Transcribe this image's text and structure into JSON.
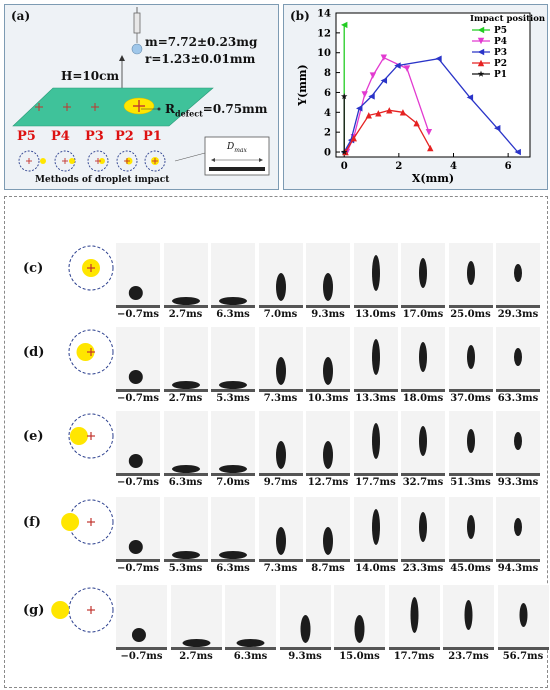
{
  "panel_a": {
    "label": "(a)",
    "mass": "m=7.72±0.23mg",
    "radius": "r=1.23±0.01mm",
    "height": "H=10cm",
    "r_defect_prefix": "R",
    "r_defect_sub": "defect",
    "r_defect_value": "=0.75mm",
    "positions": [
      "P5",
      "P4",
      "P3",
      "P2",
      "P1"
    ],
    "methods_caption": "Methods of droplet impact",
    "dmax_label": "D",
    "dmax_sub": "max"
  },
  "panel_b": {
    "label": "(b)"
  },
  "chart_data": {
    "type": "line",
    "xlabel": "X(mm)",
    "ylabel": "Y(mm)",
    "xlim": [
      -0.3,
      6.8
    ],
    "ylim": [
      -0.5,
      14
    ],
    "xticks": [
      0,
      2,
      4,
      6
    ],
    "yticks": [
      0,
      2,
      4,
      6,
      8,
      10,
      12,
      14
    ],
    "legend_title": "Impact position",
    "legend_position": "top-right",
    "series": [
      {
        "name": "P5",
        "color": "#22cc22",
        "marker": "triangle-left",
        "x": [
          0,
          0
        ],
        "y": [
          0,
          12.8
        ]
      },
      {
        "name": "P4",
        "color": "#e23ad0",
        "marker": "triangle-down",
        "x": [
          0.1,
          0.35,
          0.75,
          1.05,
          1.45,
          2.3,
          3.1
        ],
        "y": [
          0,
          1.5,
          5.8,
          7.7,
          9.5,
          8.4,
          2.0
        ]
      },
      {
        "name": "P3",
        "color": "#2a34c8",
        "marker": "triangle-left",
        "x": [
          0,
          0.25,
          0.55,
          1.0,
          1.45,
          1.95,
          3.45,
          4.6,
          5.6,
          6.35
        ],
        "y": [
          0,
          1.2,
          4.4,
          5.6,
          7.2,
          8.7,
          9.4,
          5.5,
          2.4,
          0
        ]
      },
      {
        "name": "P2",
        "color": "#e52222",
        "marker": "triangle-up",
        "x": [
          0.05,
          0.35,
          0.9,
          1.25,
          1.65,
          2.15,
          2.65,
          3.15
        ],
        "y": [
          0,
          1.4,
          3.7,
          3.9,
          4.2,
          4.0,
          2.9,
          0.4
        ]
      },
      {
        "name": "P1",
        "color": "#111111",
        "marker": "star",
        "x": [
          0,
          0
        ],
        "y": [
          0,
          5.6
        ]
      }
    ]
  },
  "rows": [
    {
      "label": "(c)",
      "times": [
        "−0.7ms",
        "2.7ms",
        "6.3ms",
        "7.0ms",
        "9.3ms",
        "13.0ms",
        "17.0ms",
        "25.0ms",
        "29.3ms"
      ]
    },
    {
      "label": "(d)",
      "times": [
        "−0.7ms",
        "2.7ms",
        "5.3ms",
        "7.3ms",
        "10.3ms",
        "13.3ms",
        "18.0ms",
        "37.0ms",
        "63.3ms"
      ]
    },
    {
      "label": "(e)",
      "times": [
        "−0.7ms",
        "6.3ms",
        "7.0ms",
        "9.7ms",
        "12.7ms",
        "17.7ms",
        "32.7ms",
        "51.3ms",
        "93.3ms"
      ]
    },
    {
      "label": "(f)",
      "times": [
        "−0.7ms",
        "5.3ms",
        "6.3ms",
        "7.3ms",
        "8.7ms",
        "14.0ms",
        "23.3ms",
        "45.0ms",
        "94.3ms"
      ]
    },
    {
      "label": "(g)",
      "times": [
        "−0.7ms",
        "2.7ms",
        "6.3ms",
        "9.3ms",
        "15.0ms",
        "17.7ms",
        "23.7ms",
        "56.7ms"
      ]
    }
  ]
}
